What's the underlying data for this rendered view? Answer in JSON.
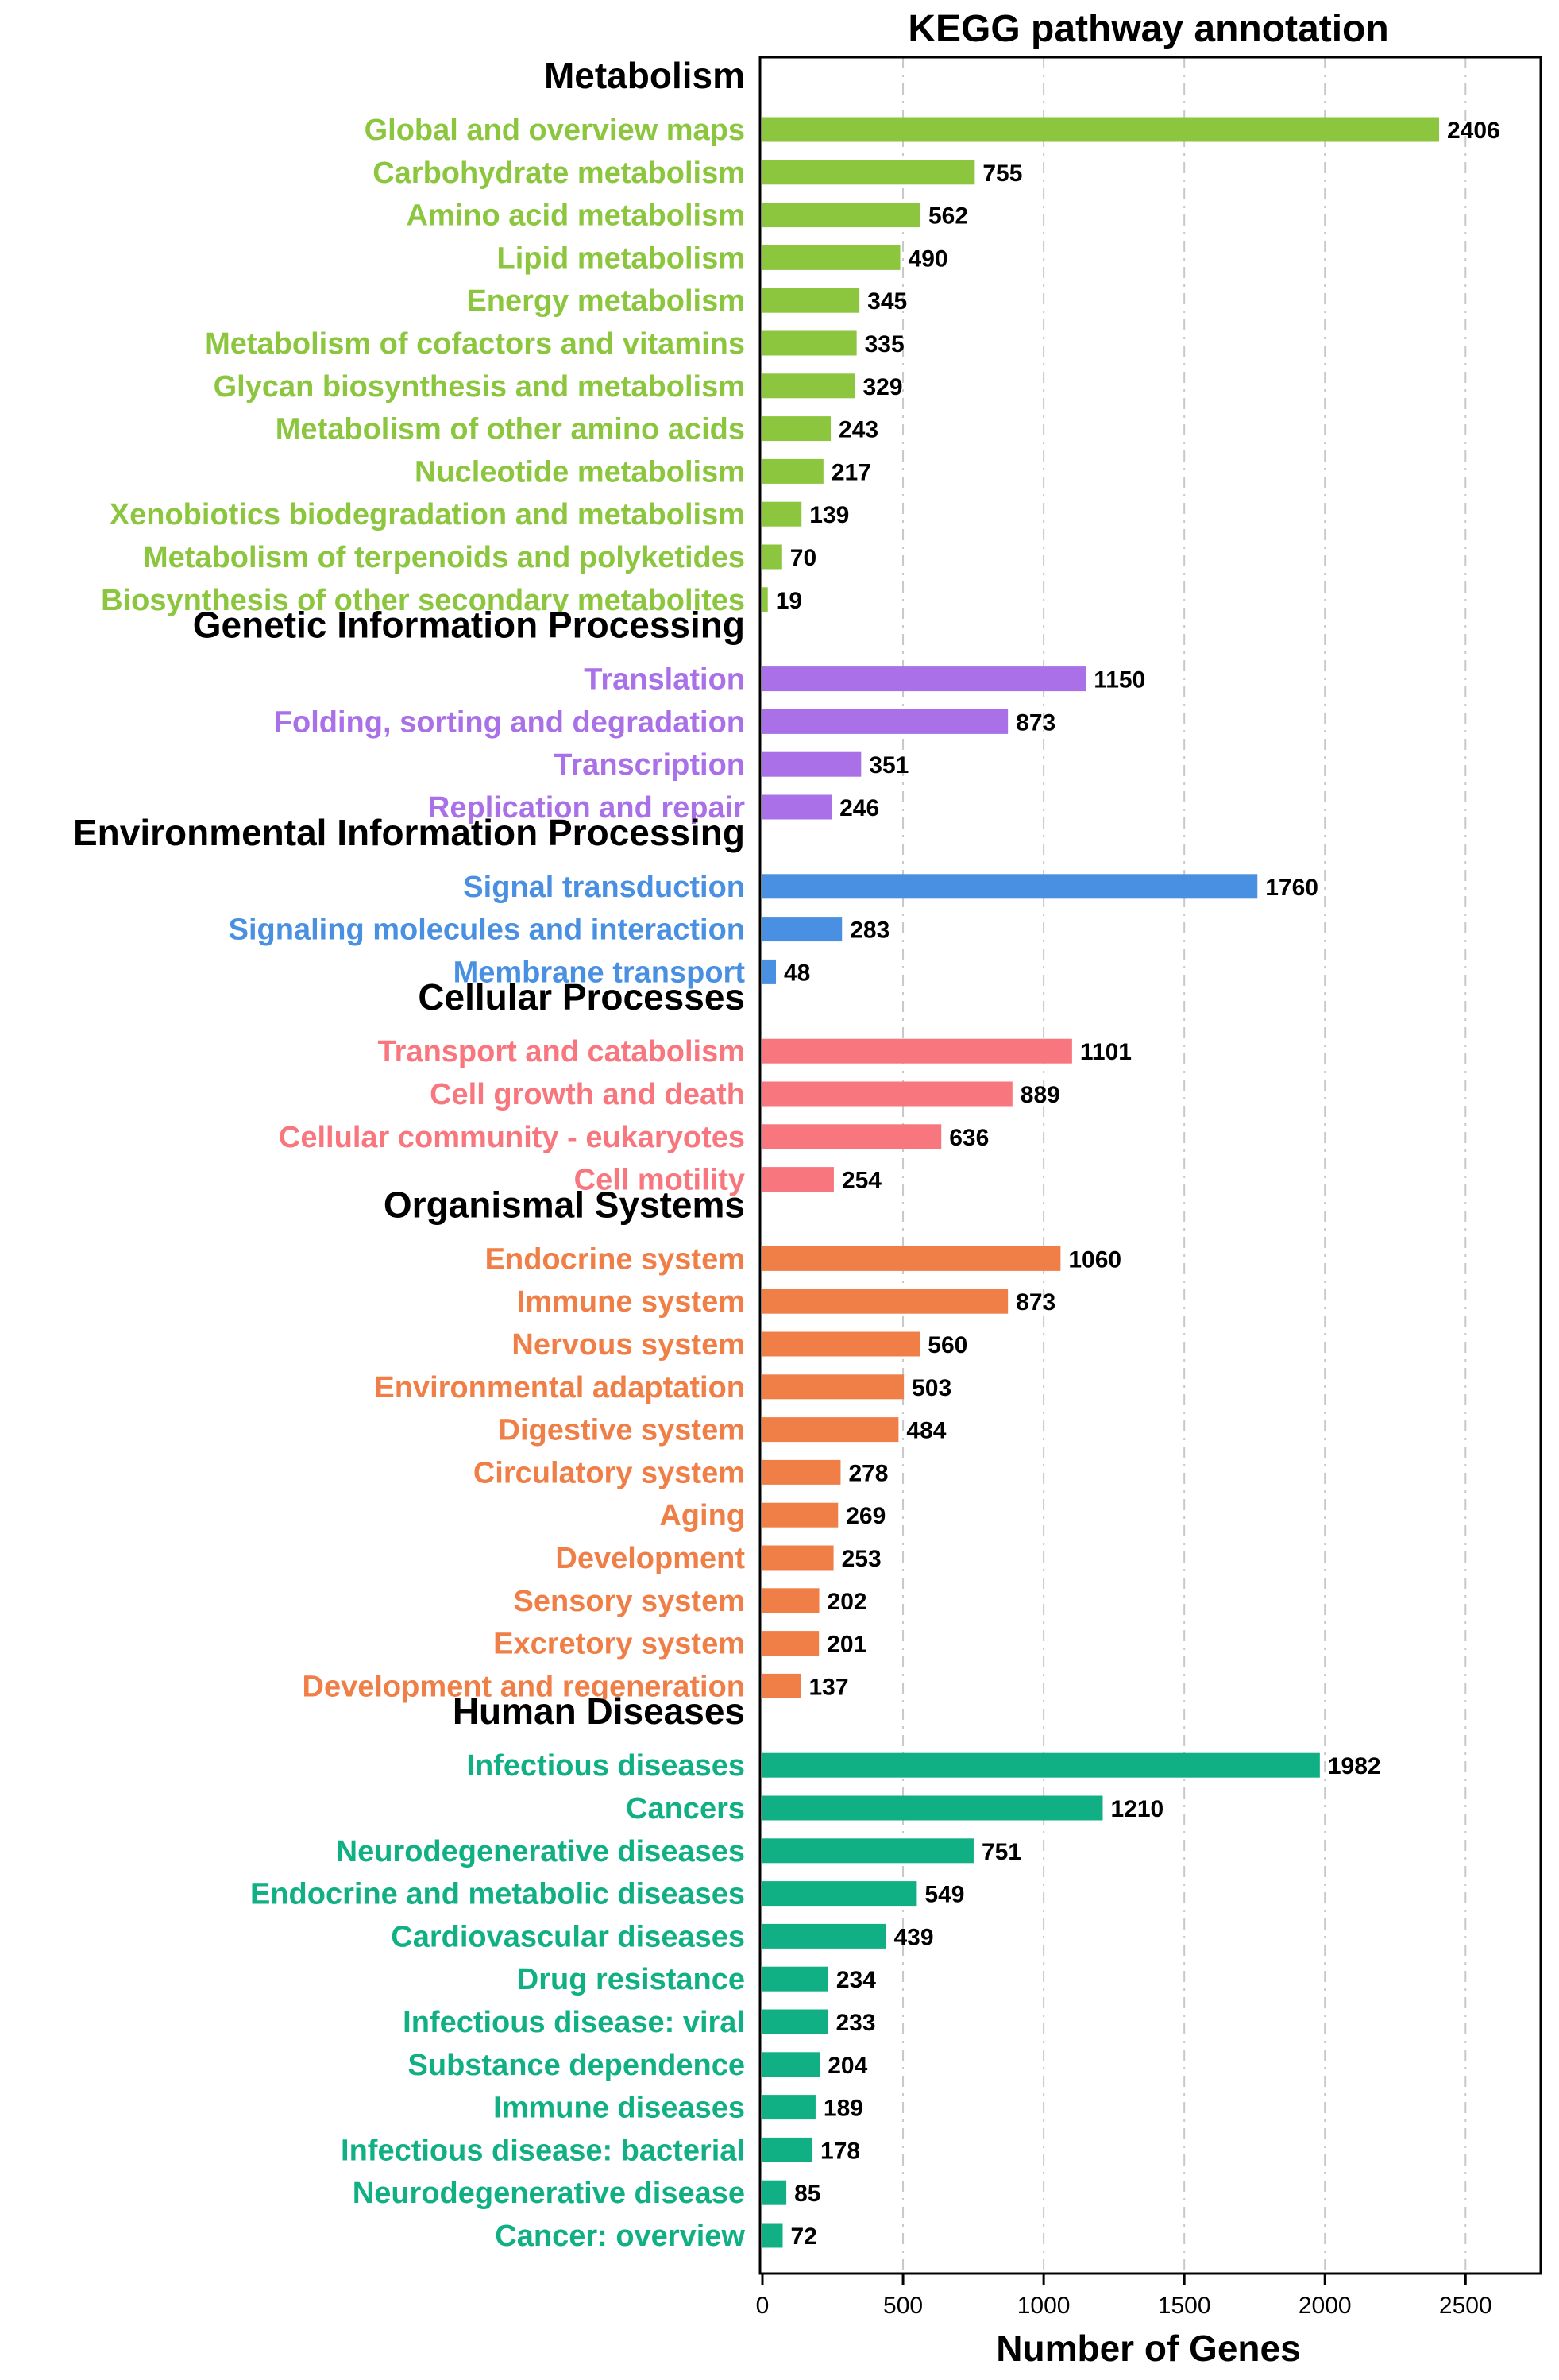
{
  "chart_data": {
    "type": "bar",
    "orientation": "horizontal",
    "title": "KEGG pathway annotation",
    "xlabel": "Number of Genes",
    "ylabel": "",
    "xlim": [
      0,
      2750
    ],
    "xticks": [
      0,
      500,
      1000,
      1500,
      2000,
      2500
    ],
    "grid": "vertical dashed",
    "groups": [
      {
        "name": "Metabolism",
        "color": "#8CC63F",
        "categories": [
          "Global and overview maps",
          "Carbohydrate metabolism",
          "Amino acid metabolism",
          "Lipid metabolism",
          "Energy metabolism",
          "Metabolism of cofactors and vitamins",
          "Glycan biosynthesis and metabolism",
          "Metabolism of other amino acids",
          "Nucleotide metabolism",
          "Xenobiotics biodegradation and metabolism",
          "Metabolism of terpenoids and polyketides",
          "Biosynthesis of other secondary metabolites"
        ],
        "values": [
          2406,
          755,
          562,
          490,
          345,
          335,
          329,
          243,
          217,
          139,
          70,
          19
        ]
      },
      {
        "name": "Genetic Information Processing",
        "color": "#A970E8",
        "categories": [
          "Translation",
          "Folding, sorting and degradation",
          "Transcription",
          "Replication and repair"
        ],
        "values": [
          1150,
          873,
          351,
          246
        ]
      },
      {
        "name": "Environmental Information Processing",
        "color": "#4A90E2",
        "categories": [
          "Signal transduction",
          "Signaling molecules and interaction",
          "Membrane transport"
        ],
        "values": [
          1760,
          283,
          48
        ]
      },
      {
        "name": "Cellular Processes",
        "color": "#F8767D",
        "categories": [
          "Transport and catabolism",
          "Cell growth and death",
          "Cellular community - eukaryotes",
          "Cell motility"
        ],
        "values": [
          1101,
          889,
          636,
          254
        ]
      },
      {
        "name": "Organismal Systems",
        "color": "#F07F47",
        "categories": [
          "Endocrine system",
          "Immune system",
          "Nervous system",
          "Environmental adaptation",
          "Digestive system",
          "Circulatory system",
          "Aging",
          "Development",
          "Sensory system",
          "Excretory system",
          "Development and regeneration"
        ],
        "values": [
          1060,
          873,
          560,
          503,
          484,
          278,
          269,
          253,
          202,
          201,
          137
        ]
      },
      {
        "name": "Human Diseases",
        "color": "#10B084",
        "categories": [
          "Infectious diseases",
          "Cancers",
          "Neurodegenerative diseases",
          "Endocrine and metabolic diseases",
          "Cardiovascular diseases",
          "Drug resistance",
          "Infectious disease: viral",
          "Substance dependence",
          "Immune diseases",
          "Infectious disease: bacterial",
          "Neurodegenerative disease",
          "Cancer: overview"
        ],
        "values": [
          1982,
          1210,
          751,
          549,
          439,
          234,
          233,
          204,
          189,
          178,
          85,
          72
        ]
      }
    ]
  }
}
